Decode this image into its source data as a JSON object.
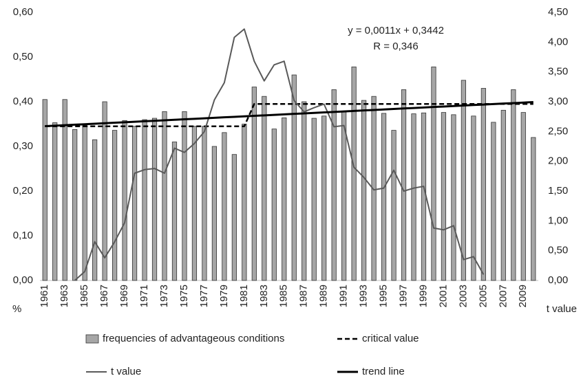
{
  "chart_data": {
    "type": "bar",
    "categories": [
      "1961",
      null,
      "1963",
      null,
      "1965",
      null,
      "1967",
      null,
      "1969",
      null,
      "1971",
      null,
      "1973",
      null,
      "1975",
      null,
      "1977",
      null,
      "1979",
      null,
      "1981",
      null,
      "1983",
      null,
      "1985",
      null,
      "1987",
      null,
      "1989",
      null,
      "1991",
      null,
      "1993",
      null,
      "1995",
      null,
      "1997",
      null,
      "1999",
      null,
      "2001",
      null,
      "2003",
      null,
      "2005",
      null,
      "2007",
      null,
      "2009",
      null
    ],
    "series": [
      {
        "name": "frequencies of advantageous conditions",
        "type": "bar",
        "axis": "y",
        "color": "#a6a6a6",
        "values": [
          0.405,
          0.353,
          0.405,
          0.338,
          0.347,
          0.315,
          0.4,
          0.336,
          0.358,
          0.345,
          0.36,
          0.363,
          0.378,
          0.31,
          0.378,
          0.345,
          0.345,
          0.3,
          0.331,
          0.282,
          0.35,
          0.433,
          0.412,
          0.339,
          0.364,
          0.46,
          0.4,
          0.363,
          0.368,
          0.427,
          0.377,
          0.478,
          0.403,
          0.412,
          0.374,
          0.336,
          0.427,
          0.373,
          0.375,
          0.478,
          0.376,
          0.371,
          0.448,
          0.368,
          0.43,
          0.354,
          0.381,
          0.427,
          0.376,
          0.32
        ]
      },
      {
        "name": "critical value",
        "type": "line",
        "axis": "y",
        "color": "#000000",
        "style": "dashed",
        "values": [
          0.345,
          0.345,
          0.345,
          0.345,
          0.345,
          0.345,
          0.345,
          0.345,
          0.345,
          0.345,
          0.345,
          0.345,
          0.345,
          0.345,
          0.345,
          0.345,
          0.345,
          0.345,
          0.345,
          0.345,
          0.345,
          0.395,
          0.395,
          0.395,
          0.395,
          0.395,
          0.395,
          0.395,
          0.395,
          0.395,
          0.395,
          0.395,
          0.395,
          0.395,
          0.395,
          0.395,
          0.395,
          0.395,
          0.395,
          0.395,
          0.395,
          0.395,
          0.395,
          0.395,
          0.395,
          0.395,
          0.395,
          0.395,
          0.395,
          0.395
        ]
      },
      {
        "name": "t value",
        "type": "line",
        "axis": "y2",
        "color": "#595959",
        "style": "solid",
        "values": [
          null,
          null,
          null,
          0.0,
          0.15,
          0.65,
          0.38,
          0.65,
          0.97,
          1.8,
          1.86,
          1.88,
          1.8,
          2.22,
          2.15,
          2.3,
          2.5,
          3.03,
          3.32,
          4.08,
          4.22,
          3.68,
          3.35,
          3.62,
          3.68,
          3.02,
          2.83,
          2.9,
          2.96,
          2.58,
          2.6,
          1.9,
          1.73,
          1.52,
          1.55,
          1.85,
          1.5,
          1.55,
          1.58,
          0.88,
          0.85,
          0.92,
          0.35,
          0.4,
          0.1,
          null,
          null,
          null,
          null,
          null
        ]
      },
      {
        "name": "trend line",
        "type": "line",
        "axis": "y",
        "color": "#000000",
        "style": "thick",
        "values": [
          0.3453,
          0.3464,
          0.3475,
          0.3486,
          0.3497,
          0.3508,
          0.3519,
          0.353,
          0.3541,
          0.3552,
          0.3563,
          0.3574,
          0.3585,
          0.3596,
          0.3607,
          0.3618,
          0.3629,
          0.364,
          0.3651,
          0.3662,
          0.3673,
          0.3684,
          0.3695,
          0.3706,
          0.3717,
          0.3728,
          0.3739,
          0.375,
          0.3761,
          0.3772,
          0.3783,
          0.3794,
          0.3805,
          0.3816,
          0.3827,
          0.3838,
          0.3849,
          0.386,
          0.3871,
          0.3882,
          0.3893,
          0.3904,
          0.3915,
          0.3926,
          0.3937,
          0.3948,
          0.3959,
          0.397,
          0.3981,
          0.3992
        ]
      }
    ],
    "ylim": [
      0,
      0.6
    ],
    "yticks": [
      {
        "value": 0,
        "label": "0,00"
      },
      {
        "value": 0.1,
        "label": "0,10"
      },
      {
        "value": 0.2,
        "label": "0,20"
      },
      {
        "value": 0.3,
        "label": "0,30"
      },
      {
        "value": 0.4,
        "label": "0,40"
      },
      {
        "value": 0.5,
        "label": "0,50"
      },
      {
        "value": 0.6,
        "label": "0,60"
      }
    ],
    "y2lim": [
      0,
      4.5
    ],
    "y2ticks": [
      {
        "value": 0,
        "label": "0,00"
      },
      {
        "value": 0.5,
        "label": "0,50"
      },
      {
        "value": 1,
        "label": "1,00"
      },
      {
        "value": 1.5,
        "label": "1,50"
      },
      {
        "value": 2,
        "label": "2,00"
      },
      {
        "value": 2.5,
        "label": "2,50"
      },
      {
        "value": 3,
        "label": "3,00"
      },
      {
        "value": 3.5,
        "label": "3,50"
      },
      {
        "value": 4,
        "label": "4,00"
      },
      {
        "value": 4.5,
        "label": "4,50"
      }
    ],
    "ylabel": "%",
    "y2label": "t value",
    "annotations": [
      "y = 0,0011x + 0,3442",
      "R = 0,346"
    ],
    "grid": false
  }
}
